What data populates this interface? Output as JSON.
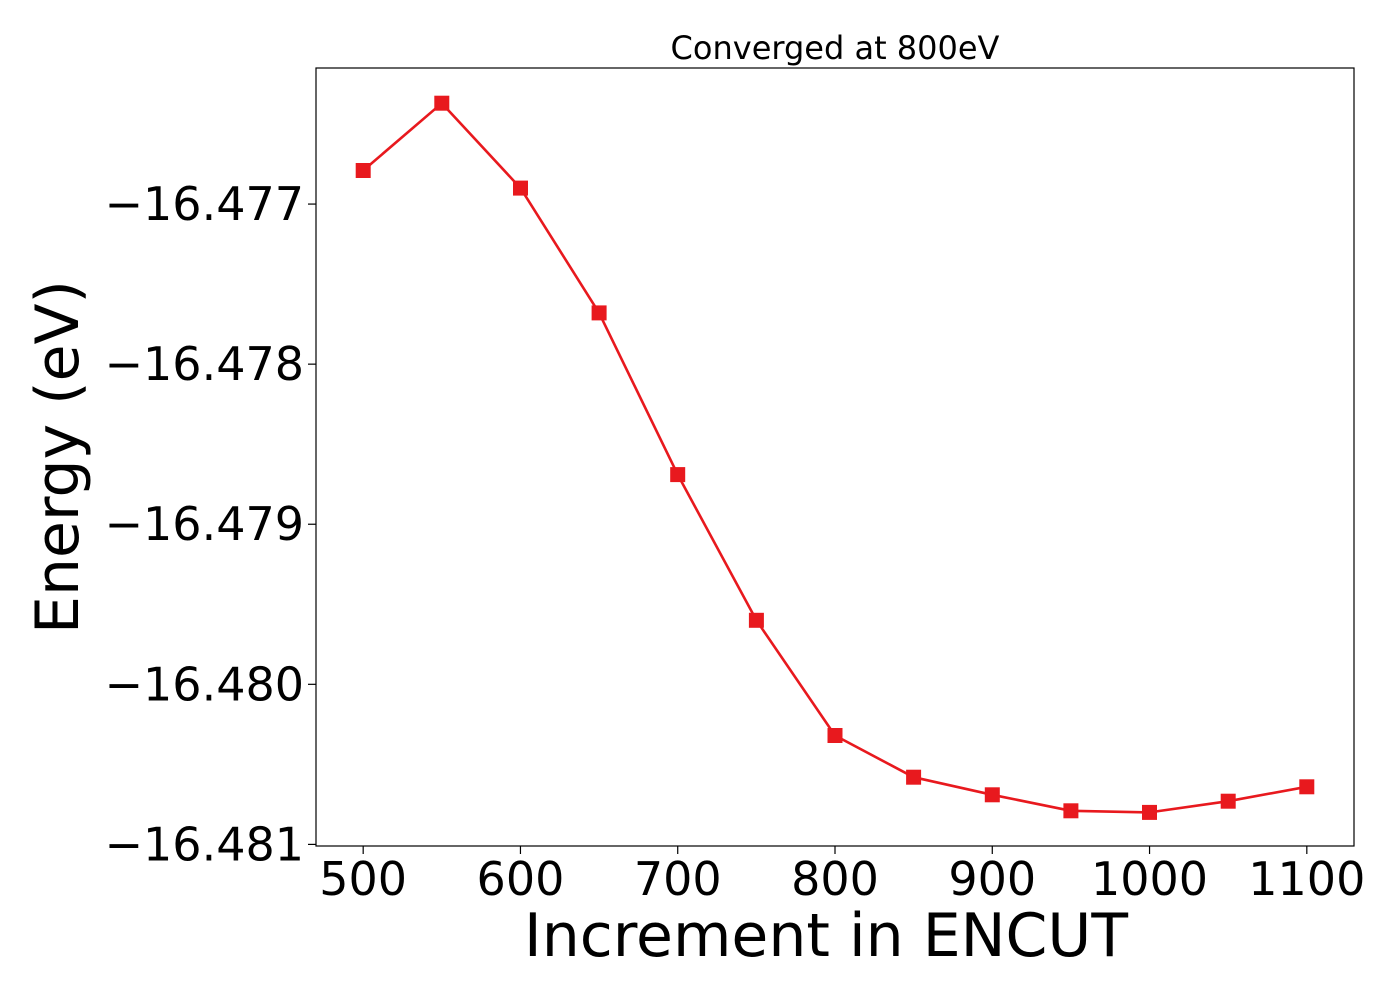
{
  "chart_data": {
    "type": "line",
    "title": "Converged at 800eV",
    "xlabel": "Increment in ENCUT",
    "ylabel": "Energy (eV)",
    "x": [
      500,
      550,
      600,
      650,
      700,
      750,
      800,
      850,
      900,
      950,
      1000,
      1050,
      1100
    ],
    "series": [
      {
        "values": [
          -16.47679,
          -16.47637,
          -16.4769,
          -16.47768,
          -16.47869,
          -16.4796,
          -16.48032,
          -16.48058,
          -16.48069,
          -16.48079,
          -16.4808,
          -16.48073,
          -16.48064
        ],
        "color": "#e8191e",
        "marker": "square"
      }
    ],
    "xlim": [
      470,
      1130
    ],
    "ylim": [
      -16.48101,
      -16.47615
    ],
    "xticks": [
      500,
      600,
      700,
      800,
      900,
      1000,
      1100
    ],
    "xtick_labels": [
      "500",
      "600",
      "700",
      "800",
      "900",
      "1000",
      "1100"
    ],
    "yticks": [
      -16.477,
      -16.478,
      -16.479,
      -16.48,
      -16.481
    ],
    "ytick_labels": [
      "−16.477",
      "−16.478",
      "−16.479",
      "−16.480",
      "−16.481"
    ],
    "grid": false,
    "legend": false
  }
}
